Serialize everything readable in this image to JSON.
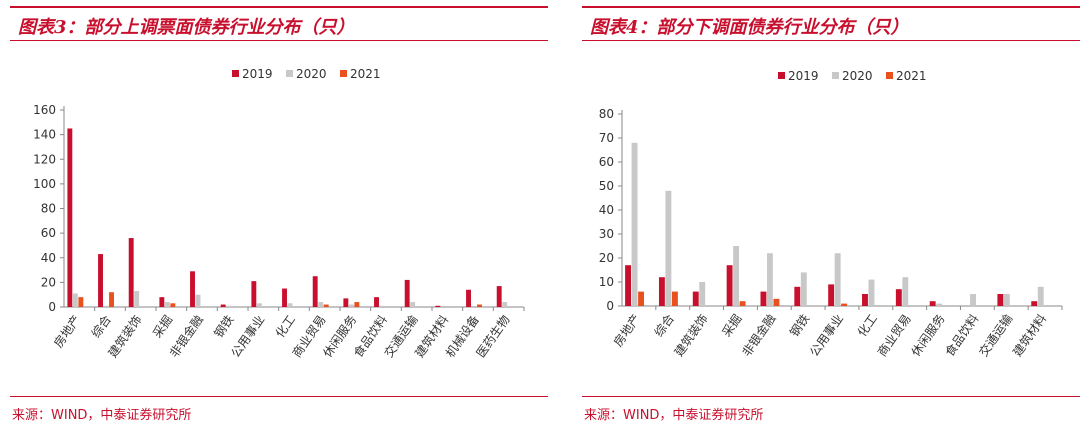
{
  "colors": {
    "s2019": "#c8102e",
    "s2020": "#c8c8c8",
    "s2021": "#e8501e",
    "accent": "#c8102e"
  },
  "left": {
    "title": "图表3：部分上调票面债券行业分布（只）",
    "source": "来源：WIND，中泰证券研究所",
    "chart_data": {
      "type": "bar",
      "title": "图表3：部分上调票面债券行业分布（只）",
      "ylim": [
        0,
        160
      ],
      "yticks": [
        0,
        20,
        40,
        60,
        80,
        100,
        120,
        140,
        160
      ],
      "legend_position": "top-center",
      "categories": [
        "房地产",
        "综合",
        "建筑装饰",
        "采掘",
        "非银金融",
        "钢铁",
        "公用事业",
        "化工",
        "商业贸易",
        "休闲服务",
        "食品饮料",
        "交通运输",
        "建筑材料",
        "机械设备",
        "医药生物"
      ],
      "series": [
        {
          "name": "2019",
          "values": [
            145,
            43,
            56,
            8,
            29,
            2,
            21,
            15,
            25,
            7,
            8,
            22,
            1,
            14,
            17
          ]
        },
        {
          "name": "2020",
          "values": [
            11,
            1,
            13,
            4,
            10,
            1,
            3,
            3,
            4,
            2,
            1,
            4,
            0,
            0,
            4
          ]
        },
        {
          "name": "2021",
          "values": [
            8,
            12,
            0,
            3,
            0,
            0,
            0,
            0,
            2,
            4,
            0,
            0,
            0,
            2,
            0
          ]
        }
      ]
    }
  },
  "right": {
    "title": "图表4：部分下调面债券行业分布（只）",
    "source": "来源：WIND，中泰证券研究所",
    "chart_data": {
      "type": "bar",
      "title": "图表4：部分下调面债券行业分布（只）",
      "ylim": [
        0,
        80
      ],
      "yticks": [
        0,
        10,
        20,
        30,
        40,
        50,
        60,
        70,
        80
      ],
      "legend_position": "top-center",
      "categories": [
        "房地产",
        "综合",
        "建筑装饰",
        "采掘",
        "非银金融",
        "钢铁",
        "公用事业",
        "化工",
        "商业贸易",
        "休闲服务",
        "食品饮料",
        "交通运输",
        "建筑材料"
      ],
      "series": [
        {
          "name": "2019",
          "values": [
            17,
            12,
            6,
            17,
            6,
            8,
            9,
            5,
            7,
            2,
            0,
            5,
            2
          ]
        },
        {
          "name": "2020",
          "values": [
            68,
            48,
            10,
            25,
            22,
            14,
            22,
            11,
            12,
            1,
            5,
            5,
            8
          ]
        },
        {
          "name": "2021",
          "values": [
            6,
            6,
            0,
            2,
            3,
            0,
            1,
            0,
            0,
            0,
            0,
            0,
            0
          ]
        }
      ]
    }
  }
}
